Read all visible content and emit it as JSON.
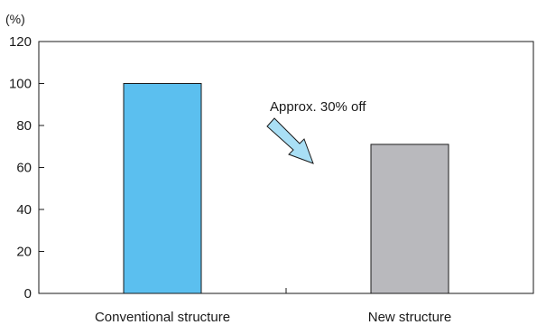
{
  "chart_data": {
    "type": "bar",
    "title": "",
    "xlabel": "",
    "ylabel": "(%)",
    "ylim": [
      0,
      120
    ],
    "yticks": [
      0,
      20,
      40,
      60,
      80,
      100,
      120
    ],
    "categories": [
      "Conventional structure",
      "New structure"
    ],
    "values": [
      100,
      71
    ],
    "grid": false,
    "legend": "none",
    "colors": [
      "#5bbfef",
      "#b9b9bd"
    ],
    "annotation": {
      "text": "Approx. 30% off",
      "arrow_color": "#a9dff5",
      "arrow_direction": "down-right"
    }
  }
}
